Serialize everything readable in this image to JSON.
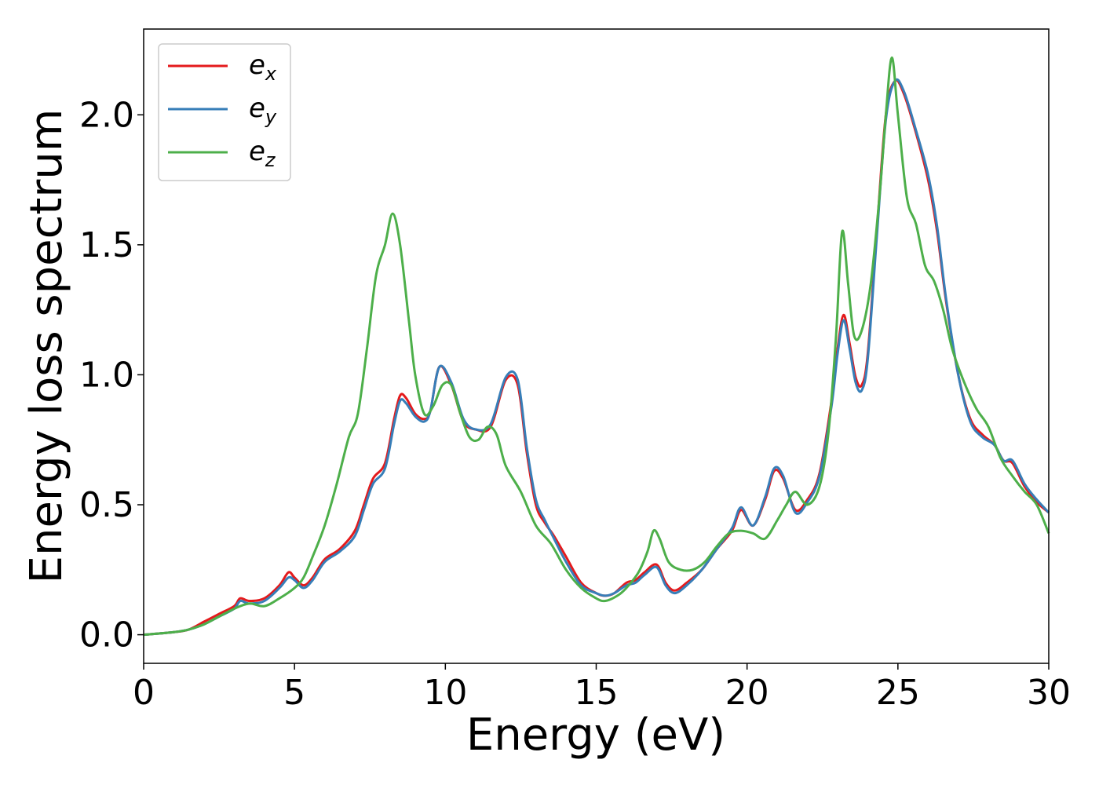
{
  "chart_data": {
    "type": "line",
    "title": "",
    "xlabel": "Energy (eV)",
    "ylabel": "Energy loss spectrum",
    "xlim": [
      0,
      30
    ],
    "ylim": [
      -0.11,
      2.33
    ],
    "xticks": [
      0,
      5,
      10,
      15,
      20,
      25,
      30
    ],
    "xtick_labels": [
      "0",
      "5",
      "10",
      "15",
      "20",
      "25",
      "30"
    ],
    "yticks": [
      0.0,
      0.5,
      1.0,
      1.5,
      2.0
    ],
    "ytick_labels": [
      "0.0",
      "0.5",
      "1.0",
      "1.5",
      "2.0"
    ],
    "grid": false,
    "legend_position": "top-left",
    "series": [
      {
        "name": "e_x",
        "label_base": "e",
        "label_sub": "x",
        "color": "#e41a1c",
        "x": [
          0,
          1.0,
          1.5,
          2.0,
          2.5,
          3.0,
          3.2,
          3.5,
          4.0,
          4.5,
          4.8,
          5.0,
          5.3,
          5.6,
          6.0,
          6.5,
          7.0,
          7.3,
          7.6,
          8.0,
          8.3,
          8.5,
          8.7,
          9.0,
          9.3,
          9.5,
          9.8,
          10.2,
          10.6,
          11.0,
          11.5,
          12.0,
          12.4,
          12.7,
          13.0,
          13.3,
          13.6,
          14.0,
          14.5,
          15.0,
          15.3,
          15.6,
          16.0,
          16.3,
          16.6,
          17.0,
          17.3,
          17.6,
          18.0,
          18.5,
          19.0,
          19.5,
          19.8,
          20.2,
          20.6,
          20.9,
          21.2,
          21.6,
          22.0,
          22.4,
          22.8,
          23.0,
          23.2,
          23.4,
          23.6,
          23.8,
          24.0,
          24.3,
          24.6,
          24.9,
          25.2,
          25.6,
          26.0,
          26.3,
          26.6,
          27.0,
          27.4,
          27.8,
          28.2,
          28.5,
          28.8,
          29.2,
          29.6,
          30.0
        ],
        "y": [
          0,
          0.01,
          0.02,
          0.05,
          0.08,
          0.11,
          0.14,
          0.13,
          0.14,
          0.19,
          0.24,
          0.22,
          0.19,
          0.22,
          0.29,
          0.33,
          0.4,
          0.5,
          0.6,
          0.66,
          0.83,
          0.92,
          0.91,
          0.85,
          0.83,
          0.86,
          1.03,
          0.96,
          0.82,
          0.79,
          0.8,
          0.98,
          0.96,
          0.7,
          0.5,
          0.43,
          0.38,
          0.3,
          0.2,
          0.16,
          0.15,
          0.16,
          0.2,
          0.21,
          0.24,
          0.27,
          0.2,
          0.17,
          0.2,
          0.25,
          0.33,
          0.4,
          0.48,
          0.42,
          0.52,
          0.63,
          0.6,
          0.48,
          0.52,
          0.62,
          0.9,
          1.1,
          1.23,
          1.12,
          0.99,
          0.96,
          1.08,
          1.55,
          2.0,
          2.13,
          2.08,
          1.93,
          1.75,
          1.55,
          1.28,
          1.0,
          0.83,
          0.77,
          0.73,
          0.67,
          0.66,
          0.57,
          0.51,
          0.47
        ]
      },
      {
        "name": "e_y",
        "label_base": "e",
        "label_sub": "y",
        "color": "#377eb8",
        "x": [
          0,
          1.0,
          1.5,
          2.0,
          2.5,
          3.0,
          3.2,
          3.5,
          4.0,
          4.5,
          4.8,
          5.0,
          5.3,
          5.6,
          6.0,
          6.5,
          7.0,
          7.3,
          7.6,
          8.0,
          8.3,
          8.5,
          8.7,
          9.0,
          9.3,
          9.5,
          9.8,
          10.2,
          10.6,
          11.0,
          11.5,
          12.0,
          12.4,
          12.7,
          13.0,
          13.3,
          13.6,
          14.0,
          14.5,
          15.0,
          15.3,
          15.6,
          16.0,
          16.3,
          16.6,
          17.0,
          17.3,
          17.6,
          18.0,
          18.5,
          19.0,
          19.5,
          19.8,
          20.2,
          20.6,
          20.9,
          21.2,
          21.6,
          22.0,
          22.4,
          22.8,
          23.0,
          23.2,
          23.4,
          23.6,
          23.8,
          24.0,
          24.3,
          24.6,
          24.9,
          25.2,
          25.6,
          26.0,
          26.3,
          26.6,
          27.0,
          27.4,
          27.8,
          28.2,
          28.5,
          28.8,
          29.2,
          29.6,
          30.0
        ],
        "y": [
          0,
          0.01,
          0.02,
          0.04,
          0.07,
          0.1,
          0.13,
          0.12,
          0.13,
          0.18,
          0.22,
          0.21,
          0.18,
          0.21,
          0.28,
          0.32,
          0.38,
          0.48,
          0.58,
          0.64,
          0.81,
          0.9,
          0.89,
          0.84,
          0.82,
          0.86,
          1.03,
          0.97,
          0.83,
          0.79,
          0.81,
          0.99,
          0.98,
          0.72,
          0.52,
          0.44,
          0.37,
          0.28,
          0.19,
          0.16,
          0.15,
          0.16,
          0.19,
          0.2,
          0.23,
          0.26,
          0.19,
          0.16,
          0.19,
          0.25,
          0.33,
          0.41,
          0.49,
          0.42,
          0.53,
          0.64,
          0.61,
          0.47,
          0.51,
          0.61,
          0.88,
          1.08,
          1.21,
          1.1,
          0.97,
          0.94,
          1.06,
          1.53,
          1.98,
          2.13,
          2.09,
          1.94,
          1.77,
          1.57,
          1.29,
          1.0,
          0.82,
          0.76,
          0.73,
          0.67,
          0.67,
          0.58,
          0.52,
          0.47
        ]
      },
      {
        "name": "e_z",
        "label_base": "e",
        "label_sub": "z",
        "color": "#4daf4a",
        "x": [
          0,
          1.0,
          1.5,
          2.0,
          2.5,
          3.0,
          3.5,
          4.0,
          4.5,
          5.0,
          5.3,
          5.6,
          6.0,
          6.4,
          6.8,
          7.1,
          7.4,
          7.7,
          8.0,
          8.25,
          8.5,
          8.8,
          9.0,
          9.3,
          9.6,
          9.9,
          10.2,
          10.5,
          10.8,
          11.1,
          11.4,
          11.7,
          12.0,
          12.5,
          13.0,
          13.5,
          14.0,
          14.5,
          15.0,
          15.3,
          15.7,
          16.0,
          16.4,
          16.7,
          16.9,
          17.1,
          17.4,
          17.8,
          18.2,
          18.6,
          19.0,
          19.4,
          19.8,
          20.2,
          20.6,
          21.0,
          21.3,
          21.6,
          22.0,
          22.4,
          22.7,
          22.95,
          23.15,
          23.35,
          23.55,
          23.8,
          24.1,
          24.4,
          24.6,
          24.8,
          25.0,
          25.3,
          25.6,
          25.9,
          26.2,
          26.5,
          26.8,
          27.2,
          27.6,
          28.0,
          28.4,
          28.8,
          29.2,
          29.6,
          30.0
        ],
        "y": [
          0,
          0.01,
          0.02,
          0.04,
          0.07,
          0.1,
          0.12,
          0.11,
          0.14,
          0.18,
          0.22,
          0.3,
          0.42,
          0.58,
          0.76,
          0.85,
          1.1,
          1.38,
          1.5,
          1.62,
          1.5,
          1.2,
          1.0,
          0.85,
          0.88,
          0.96,
          0.96,
          0.85,
          0.76,
          0.75,
          0.8,
          0.77,
          0.65,
          0.55,
          0.42,
          0.35,
          0.25,
          0.18,
          0.14,
          0.13,
          0.15,
          0.18,
          0.24,
          0.32,
          0.4,
          0.37,
          0.28,
          0.25,
          0.25,
          0.28,
          0.34,
          0.39,
          0.4,
          0.39,
          0.37,
          0.44,
          0.5,
          0.55,
          0.5,
          0.57,
          0.78,
          1.15,
          1.55,
          1.35,
          1.15,
          1.17,
          1.35,
          1.7,
          2.0,
          2.22,
          2.0,
          1.68,
          1.58,
          1.42,
          1.36,
          1.25,
          1.1,
          0.97,
          0.87,
          0.8,
          0.68,
          0.61,
          0.55,
          0.5,
          0.39
        ]
      }
    ]
  }
}
